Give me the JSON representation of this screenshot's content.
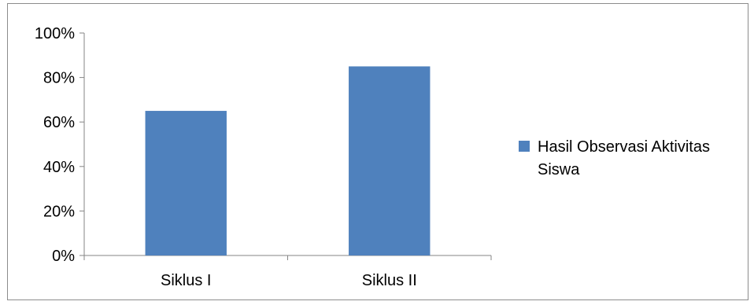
{
  "chart_data": {
    "type": "bar",
    "title": "",
    "xlabel": "",
    "ylabel": "",
    "categories": [
      "Siklus I",
      "Siklus II"
    ],
    "series": [
      {
        "name": "Hasil Observasi Aktivitas Siswa",
        "values": [
          65,
          85
        ],
        "color": "#4f81bd"
      }
    ],
    "ylim": [
      0,
      100
    ],
    "yticks": [
      0,
      20,
      40,
      60,
      80,
      100
    ],
    "ytick_labels": [
      "0%",
      "20%",
      "40%",
      "60%",
      "80%",
      "100%"
    ],
    "grid": false,
    "legend": {
      "position": "right",
      "lines": [
        "Hasil Observasi Aktivitas",
        "Siswa"
      ]
    }
  }
}
